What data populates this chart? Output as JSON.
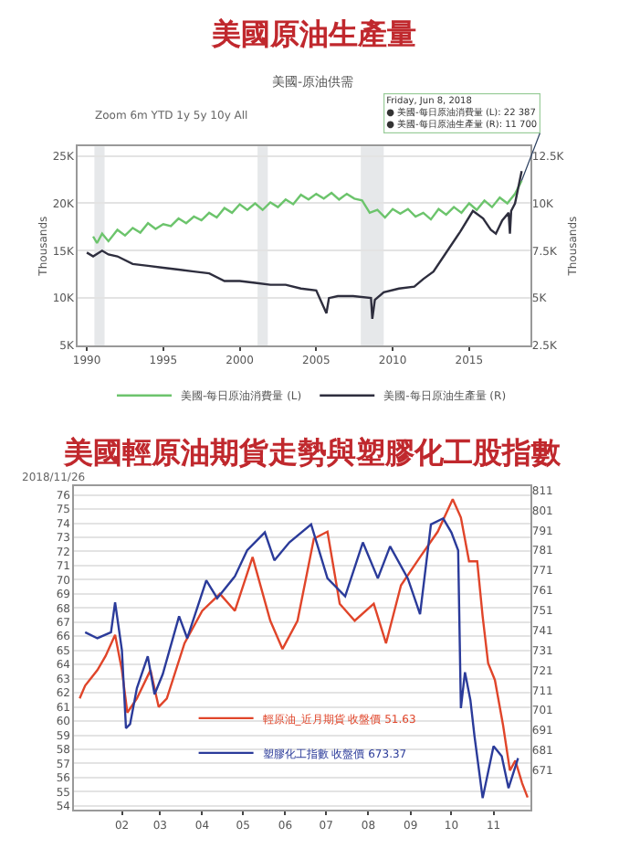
{
  "chart_data": [
    {
      "type": "line",
      "title": "美國原油生產量",
      "subtitle": "美國-原油供需",
      "ylabel": "Thousands",
      "y2label": "Thousands",
      "annotations": [
        "Zoom 6m YTD 1y 5y 10y All",
        {
          "text": "Friday, Jun 8, 2018\n● 美國-每日原油消費量 (L): 22 387\n● 美國-每日原油生產量 (R): 11 700",
          "x": "2018-06-08",
          "y": 22387
        }
      ],
      "series": [
        {
          "name": "美國-每日原油消費量 (L)",
          "color": "#6cc46c",
          "x": [
            "1990-06",
            "1990-09",
            "1991-01",
            "1991-06",
            "1992-01",
            "1992-07",
            "1993-01",
            "1993-07",
            "1994-01",
            "1994-07",
            "1995-01",
            "1995-07",
            "1996-01",
            "1996-07",
            "1997-01",
            "1997-07",
            "1998-01",
            "1998-07",
            "1999-01",
            "1999-07",
            "2000-01",
            "2000-07",
            "2001-01",
            "2001-07",
            "2002-01",
            "2002-07",
            "2003-01",
            "2003-07",
            "2004-01",
            "2004-07",
            "2005-01",
            "2005-07",
            "2006-01",
            "2006-07",
            "2007-01",
            "2007-07",
            "2008-01",
            "2008-07",
            "2009-01",
            "2009-07",
            "2010-01",
            "2010-07",
            "2011-01",
            "2011-07",
            "2012-01",
            "2012-07",
            "2013-01",
            "2013-07",
            "2014-01",
            "2014-07",
            "2015-01",
            "2015-07",
            "2016-01",
            "2016-07",
            "2017-01",
            "2017-07",
            "2018-01",
            "2018-06-08"
          ],
          "values": [
            16500,
            15800,
            16800,
            16000,
            17200,
            16600,
            17400,
            16900,
            17900,
            17300,
            17800,
            17600,
            18400,
            17900,
            18600,
            18200,
            19000,
            18500,
            19500,
            19000,
            19900,
            19300,
            20000,
            19300,
            20100,
            19600,
            20400,
            19900,
            20900,
            20400,
            21000,
            20500,
            21100,
            20400,
            21000,
            20500,
            20300,
            19000,
            19300,
            18500,
            19400,
            18900,
            19400,
            18600,
            19000,
            18300,
            19400,
            18800,
            19600,
            19000,
            20000,
            19300,
            20300,
            19600,
            20600,
            20000,
            21000,
            22387
          ]
        },
        {
          "name": "美國-每日原油生產量 (R)",
          "color": "#2e2e3e",
          "axis": "y2",
          "x": [
            "1990-01",
            "1990-06",
            "1991-01",
            "1991-06",
            "1992-01",
            "1993-01",
            "1994-01",
            "1995-01",
            "1996-01",
            "1997-01",
            "1998-01",
            "1999-01",
            "2000-01",
            "2001-01",
            "2002-01",
            "2003-01",
            "2004-01",
            "2005-01",
            "2005-09",
            "2005-11",
            "2006-06",
            "2007-06",
            "2008-08",
            "2008-09",
            "2008-11",
            "2009-06",
            "2010-06",
            "2011-06",
            "2012-01",
            "2012-09",
            "2013-06",
            "2014-06",
            "2015-04",
            "2015-12",
            "2016-06",
            "2016-10",
            "2017-03",
            "2017-08",
            "2017-09",
            "2017-10",
            "2018-01",
            "2018-06-08"
          ],
          "values": [
            7400,
            7200,
            7500,
            7300,
            7200,
            6800,
            6700,
            6600,
            6500,
            6400,
            6300,
            5900,
            5900,
            5800,
            5700,
            5700,
            5500,
            5400,
            4200,
            5000,
            5100,
            5100,
            5000,
            3900,
            4900,
            5300,
            5500,
            5600,
            6000,
            6400,
            7300,
            8500,
            9600,
            9200,
            8600,
            8400,
            9100,
            9500,
            8400,
            9600,
            10000,
            11700
          ]
        }
      ],
      "xlim": [
        "1989-06",
        "2019-01"
      ],
      "xticks": [
        {
          "value": "1990-01-01",
          "label": "1990"
        },
        {
          "value": "1995-01-01",
          "label": "1995"
        },
        {
          "value": "2000-01-01",
          "label": "2000"
        },
        {
          "value": "2005-01-01",
          "label": "2005"
        },
        {
          "value": "2010-01-01",
          "label": "2010"
        },
        {
          "value": "2015-01-01",
          "label": "2015"
        }
      ],
      "ylim": [
        5000,
        26000
      ],
      "yticks": [
        {
          "value": 5000,
          "label": "5K"
        },
        {
          "value": 10000,
          "label": "10K"
        },
        {
          "value": 15000,
          "label": "15K"
        },
        {
          "value": 20000,
          "label": "20K"
        },
        {
          "value": 25000,
          "label": "25K"
        }
      ],
      "y2lim": [
        2500,
        13000
      ],
      "y2ticks": [
        {
          "value": 2500,
          "label": "2.5K"
        },
        {
          "value": 5000,
          "label": "5K"
        },
        {
          "value": 7500,
          "label": "7.5K"
        },
        {
          "value": 10000,
          "label": "10K"
        },
        {
          "value": 12500,
          "label": "12.5K"
        }
      ],
      "bands": [
        {
          "axis": "x",
          "from": "1990-07",
          "to": "1991-03",
          "color": "#e6e8ea"
        },
        {
          "axis": "x",
          "from": "2001-03",
          "to": "2001-11",
          "color": "#e6e8ea"
        },
        {
          "axis": "x",
          "from": "2007-12",
          "to": "2009-06",
          "color": "#e6e8ea"
        }
      ],
      "grid": "y",
      "legend": "bottom",
      "line_style": "solid",
      "marker": "none"
    },
    {
      "type": "line",
      "title": "美國輕原油期貨走勢與塑膠化工股指數",
      "annotations": [
        "2018/11/26"
      ],
      "series": [
        {
          "name": "輕原油_近月期貨 收盤價 51.63",
          "color": "#e0452a",
          "x": [
            "2018-01-01",
            "2018-01-05",
            "2018-01-14",
            "2018-01-20",
            "2018-01-27",
            "2018-02-01",
            "2018-02-05",
            "2018-02-12",
            "2018-02-22",
            "2018-02-28",
            "2018-03-06",
            "2018-03-19",
            "2018-04-01",
            "2018-04-14",
            "2018-04-25",
            "2018-05-08",
            "2018-05-21",
            "2018-05-30",
            "2018-06-10",
            "2018-06-22",
            "2018-07-02",
            "2018-07-11",
            "2018-07-22",
            "2018-08-05",
            "2018-08-14",
            "2018-08-25",
            "2018-09-08",
            "2018-09-21",
            "2018-10-02",
            "2018-10-08",
            "2018-10-14",
            "2018-10-20",
            "2018-10-24",
            "2018-10-28",
            "2018-11-02",
            "2018-11-08",
            "2018-11-13",
            "2018-11-17",
            "2018-11-22",
            "2018-11-26"
          ],
          "values": [
            61.6,
            62.5,
            63.6,
            64.6,
            66.1,
            63.6,
            60.6,
            61.6,
            63.6,
            61.0,
            61.6,
            65.5,
            67.8,
            69.0,
            67.8,
            71.6,
            67.1,
            65.1,
            67.1,
            72.9,
            73.4,
            68.3,
            67.1,
            68.3,
            65.5,
            69.6,
            71.6,
            73.4,
            75.7,
            74.4,
            71.3,
            71.3,
            67.4,
            64.1,
            62.9,
            59.7,
            56.5,
            57.2,
            55.6,
            54.6
          ]
        },
        {
          "name": "塑膠化工指數 收盤價 673.37",
          "color": "#2b3b9a",
          "axis": "y2",
          "x": [
            "2018-01-05",
            "2018-01-14",
            "2018-01-24",
            "2018-01-27",
            "2018-02-01",
            "2018-02-04",
            "2018-02-07",
            "2018-02-12",
            "2018-02-20",
            "2018-02-25",
            "2018-03-03",
            "2018-03-15",
            "2018-03-21",
            "2018-04-04",
            "2018-04-12",
            "2018-04-25",
            "2018-05-04",
            "2018-05-17",
            "2018-05-24",
            "2018-06-04",
            "2018-06-20",
            "2018-07-02",
            "2018-07-15",
            "2018-07-28",
            "2018-08-08",
            "2018-08-17",
            "2018-08-30",
            "2018-09-08",
            "2018-09-16",
            "2018-09-25",
            "2018-10-01",
            "2018-10-06",
            "2018-10-08",
            "2018-10-11",
            "2018-10-15",
            "2018-10-18",
            "2018-10-24",
            "2018-11-01",
            "2018-11-07",
            "2018-11-12",
            "2018-11-19"
          ],
          "values": [
            740,
            737,
            740,
            755,
            731,
            692,
            694,
            712,
            728,
            709,
            719,
            748,
            737,
            766,
            757,
            768,
            781,
            790,
            776,
            785,
            794,
            767,
            758,
            785,
            767,
            783,
            767,
            749,
            794,
            797,
            790,
            781,
            702,
            720,
            706,
            688,
            657,
            683,
            678,
            662,
            677
          ]
        }
      ],
      "xlim": [
        "2017-12-28",
        "2018-11-28"
      ],
      "xticks": [
        {
          "value": "2018-02-01",
          "label": "02"
        },
        {
          "value": "2018-03-01",
          "label": "03"
        },
        {
          "value": "2018-04-01",
          "label": "04"
        },
        {
          "value": "2018-05-01",
          "label": "05"
        },
        {
          "value": "2018-06-01",
          "label": "06"
        },
        {
          "value": "2018-07-01",
          "label": "07"
        },
        {
          "value": "2018-08-01",
          "label": "08"
        },
        {
          "value": "2018-09-01",
          "label": "09"
        },
        {
          "value": "2018-10-01",
          "label": "10"
        },
        {
          "value": "2018-11-01",
          "label": "11"
        }
      ],
      "ylim": [
        53.7,
        76.6
      ],
      "yticks": [
        54,
        55,
        56,
        57,
        58,
        59,
        60,
        61,
        62,
        63,
        64,
        65,
        66,
        67,
        68,
        69,
        70,
        71,
        72,
        73,
        74,
        75,
        76
      ],
      "y2lim": [
        651,
        813
      ],
      "y2ticks": [
        671,
        681,
        691,
        701,
        711,
        721,
        731,
        741,
        751,
        761,
        771,
        781,
        791,
        801,
        811
      ],
      "grid": "y",
      "legend": "bottom",
      "line_style": "solid",
      "marker": "none"
    }
  ]
}
